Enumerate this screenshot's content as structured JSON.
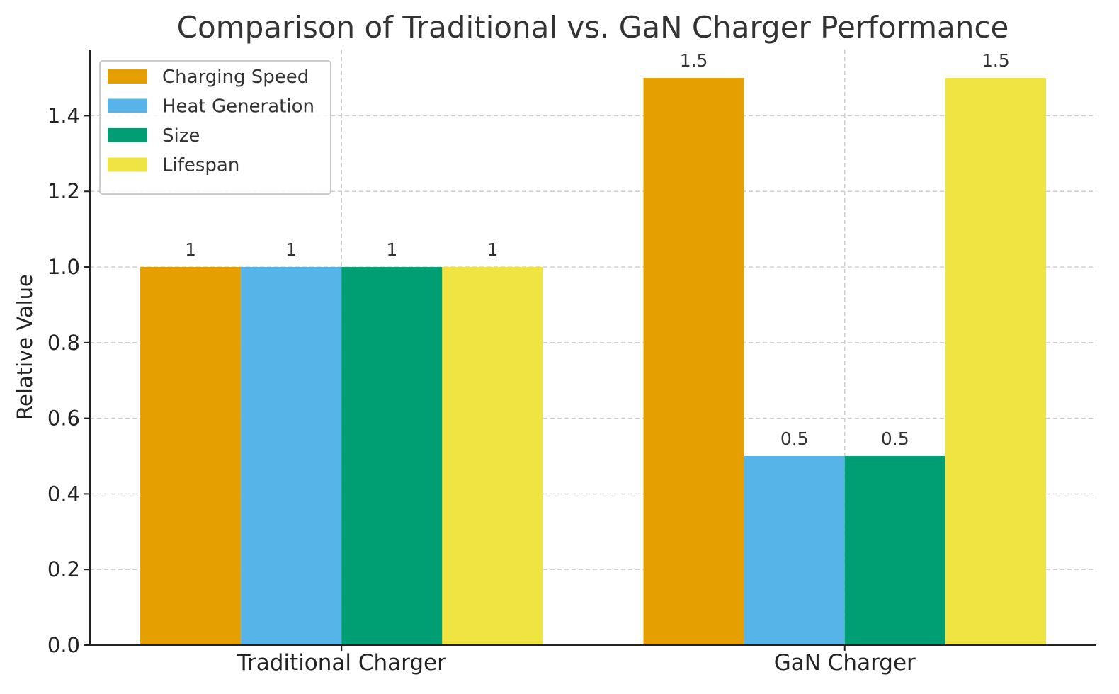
{
  "chart_data": {
    "type": "bar",
    "title": "Comparison of Traditional vs. GaN Charger Performance",
    "xlabel": "",
    "ylabel": "Relative Value",
    "categories": [
      "Traditional Charger",
      "GaN Charger"
    ],
    "series": [
      {
        "name": "Charging Speed",
        "values": [
          1,
          1.5
        ],
        "color": "#E69F00",
        "labels": [
          "1",
          "1.5"
        ]
      },
      {
        "name": "Heat Generation",
        "values": [
          1,
          0.5
        ],
        "color": "#56B4E9",
        "labels": [
          "1",
          "0.5"
        ]
      },
      {
        "name": "Size",
        "values": [
          1,
          0.5
        ],
        "color": "#009E73",
        "labels": [
          "1",
          "0.5"
        ]
      },
      {
        "name": "Lifespan",
        "values": [
          1,
          1.5
        ],
        "color": "#F0E442",
        "labels": [
          "1",
          "1.5"
        ]
      }
    ],
    "ylim": [
      0,
      1.575
    ],
    "yticks": [
      0.0,
      0.2,
      0.4,
      0.6,
      0.8,
      1.0,
      1.2,
      1.4
    ],
    "ytick_labels": [
      "0.0",
      "0.2",
      "0.4",
      "0.6",
      "0.8",
      "1.0",
      "1.2",
      "1.4"
    ],
    "grid": true,
    "legend_position": "top-left"
  }
}
